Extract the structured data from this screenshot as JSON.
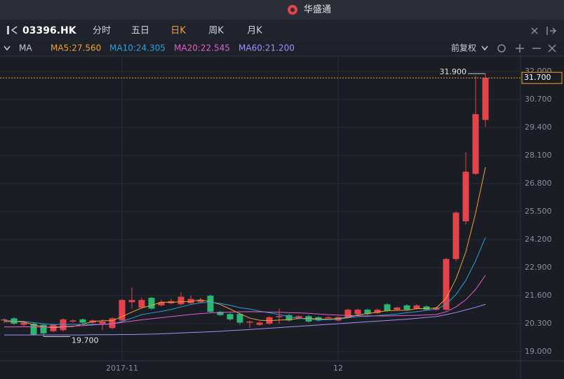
{
  "ui": {
    "app_title": "华盛通",
    "symbol": "03396.HK",
    "tabs": [
      "分时",
      "五日",
      "日K",
      "周K",
      "月K"
    ],
    "active_tab": 2,
    "indicator": "MA",
    "adjust": "前复权"
  },
  "chart_data": {
    "type": "candlestick",
    "categories": [
      null,
      null,
      null,
      null,
      null,
      null,
      null,
      null,
      null,
      null,
      null,
      null,
      "2017-11",
      null,
      null,
      null,
      null,
      null,
      null,
      null,
      null,
      null,
      null,
      null,
      null,
      null,
      null,
      null,
      null,
      null,
      null,
      null,
      null,
      null,
      "12",
      null,
      null,
      null,
      null,
      null,
      null,
      null,
      null,
      null,
      null,
      null,
      null,
      null,
      null,
      null
    ],
    "open": [
      20.45,
      20.55,
      20.25,
      20.3,
      20.25,
      19.95,
      20.0,
      20.4,
      20.5,
      20.35,
      20.3,
      20.1,
      20.45,
      21.3,
      21.05,
      21.5,
      21.15,
      21.25,
      21.2,
      21.25,
      21.3,
      21.6,
      20.85,
      20.75,
      20.75,
      20.35,
      20.25,
      20.3,
      20.6,
      20.7,
      20.55,
      20.65,
      20.6,
      20.55,
      20.45,
      20.6,
      20.75,
      20.95,
      20.8,
      21.2,
      20.95,
      21.15,
      21.0,
      21.1,
      20.95,
      20.95,
      23.3,
      25.05,
      27.25,
      29.75
    ],
    "high": [
      20.55,
      20.6,
      20.4,
      20.35,
      20.3,
      20.3,
      20.55,
      20.5,
      20.55,
      20.5,
      20.5,
      20.6,
      21.45,
      21.98,
      21.5,
      21.55,
      21.4,
      21.45,
      21.75,
      21.6,
      21.5,
      21.65,
      20.9,
      20.8,
      20.8,
      20.45,
      20.4,
      20.65,
      21.0,
      20.75,
      20.7,
      20.7,
      20.65,
      20.65,
      20.65,
      21.0,
      21.0,
      21.0,
      21.0,
      21.25,
      21.1,
      21.2,
      21.2,
      21.15,
      21.1,
      23.35,
      25.5,
      28.26,
      31.8,
      31.9
    ],
    "low": [
      20.35,
      20.25,
      20.2,
      19.75,
      19.7,
      19.9,
      19.95,
      20.35,
      20.3,
      20.3,
      20.0,
      20.05,
      20.4,
      21.0,
      21.0,
      20.95,
      21.1,
      21.2,
      21.15,
      21.2,
      21.25,
      20.8,
      20.65,
      20.45,
      20.25,
      20.1,
      20.2,
      20.25,
      20.3,
      20.4,
      20.5,
      20.35,
      20.4,
      20.5,
      20.4,
      20.55,
      20.7,
      20.7,
      20.75,
      20.85,
      20.9,
      20.9,
      20.95,
      20.9,
      20.9,
      20.9,
      23.2,
      24.9,
      27.2,
      29.43
    ],
    "close": [
      20.5,
      20.3,
      20.35,
      19.8,
      19.85,
      20.25,
      20.5,
      20.45,
      20.35,
      20.45,
      20.4,
      20.55,
      21.4,
      21.4,
      21.4,
      21.0,
      21.3,
      21.35,
      21.55,
      21.45,
      21.4,
      20.85,
      20.7,
      20.5,
      20.35,
      20.4,
      20.35,
      20.6,
      20.65,
      20.45,
      20.65,
      20.4,
      20.45,
      20.6,
      20.6,
      20.95,
      20.95,
      20.75,
      20.95,
      20.9,
      21.05,
      20.95,
      21.15,
      20.95,
      21.05,
      23.3,
      25.45,
      27.35,
      30.02,
      31.7
    ],
    "up_color": "#e5434b",
    "down_color": "#2bb673",
    "series": [
      {
        "name": "MA5:27.560",
        "color": "#f0a030",
        "values": [
          20.4,
          20.4,
          20.38,
          20.25,
          20.16,
          20.11,
          20.15,
          20.17,
          20.28,
          20.4,
          20.44,
          20.44,
          20.63,
          20.84,
          21.03,
          21.15,
          21.3,
          21.29,
          21.32,
          21.33,
          21.41,
          21.32,
          21.19,
          20.98,
          20.76,
          20.56,
          20.46,
          20.44,
          20.47,
          20.49,
          20.54,
          20.55,
          20.52,
          20.51,
          20.54,
          20.6,
          20.71,
          20.77,
          20.84,
          20.9,
          20.92,
          20.92,
          21.0,
          21.0,
          21.03,
          21.48,
          22.38,
          23.62,
          25.43,
          27.56
        ]
      },
      {
        "name": "MA10:24.305",
        "color": "#2a9fd8",
        "values": [
          20.45,
          20.43,
          20.41,
          20.35,
          20.3,
          20.26,
          20.27,
          20.27,
          20.26,
          20.27,
          20.26,
          20.29,
          20.4,
          20.56,
          20.72,
          20.8,
          20.87,
          20.96,
          21.08,
          21.19,
          21.27,
          21.3,
          21.24,
          21.15,
          21.04,
          20.98,
          20.88,
          20.81,
          20.72,
          20.63,
          20.55,
          20.51,
          20.48,
          20.49,
          20.51,
          20.57,
          20.63,
          20.64,
          20.67,
          20.71,
          20.75,
          20.81,
          20.86,
          20.92,
          20.97,
          21.2,
          21.65,
          22.31,
          23.22,
          24.305
        ]
      },
      {
        "name": "MA20:22.545",
        "color": "#e060c8",
        "values": [
          20.15,
          20.15,
          20.16,
          20.15,
          20.14,
          20.15,
          20.17,
          20.19,
          20.21,
          20.24,
          20.27,
          20.3,
          20.36,
          20.42,
          20.48,
          20.53,
          20.58,
          20.63,
          20.68,
          20.73,
          20.77,
          20.8,
          20.82,
          20.84,
          20.85,
          20.86,
          20.85,
          20.84,
          20.83,
          20.81,
          20.8,
          20.78,
          20.75,
          20.72,
          20.7,
          20.68,
          20.67,
          20.66,
          20.66,
          20.66,
          20.67,
          20.68,
          20.69,
          20.71,
          20.73,
          20.85,
          21.08,
          21.41,
          21.89,
          22.545
        ]
      },
      {
        "name": "MA60:21.200",
        "color": "#a78bfa",
        "values": [
          19.78,
          19.78,
          19.78,
          19.78,
          19.78,
          19.78,
          19.78,
          19.78,
          19.78,
          19.79,
          19.79,
          19.79,
          19.8,
          19.8,
          19.81,
          19.82,
          19.83,
          19.85,
          19.87,
          19.89,
          19.91,
          19.93,
          19.95,
          19.98,
          20.0,
          20.03,
          20.06,
          20.09,
          20.12,
          20.15,
          20.18,
          20.21,
          20.24,
          20.27,
          20.3,
          20.33,
          20.36,
          20.39,
          20.42,
          20.45,
          20.48,
          20.51,
          20.55,
          20.59,
          20.63,
          20.72,
          20.82,
          20.94,
          21.06,
          21.2
        ]
      }
    ],
    "ylim": [
      18.58,
      32.65
    ],
    "yticks": [
      {
        "value": 19.0,
        "label": "19.000"
      },
      {
        "value": 20.3,
        "label": "20.300"
      },
      {
        "value": 21.6,
        "label": "21.600"
      },
      {
        "value": 22.9,
        "label": "22.900"
      },
      {
        "value": 24.2,
        "label": "24.200"
      },
      {
        "value": 25.5,
        "label": "25.500"
      },
      {
        "value": 26.8,
        "label": "26.800"
      },
      {
        "value": 28.1,
        "label": "28.100"
      },
      {
        "value": 29.4,
        "label": "29.400"
      },
      {
        "value": 30.7,
        "label": "30.700"
      },
      {
        "value": 32.0,
        "label": "32.000"
      }
    ],
    "grid": true,
    "last_price": {
      "value": 31.7,
      "label": "31.700",
      "color": "#f0a030"
    },
    "high_marker": {
      "index": 49,
      "value": 31.9,
      "label": "31.900"
    },
    "low_marker": {
      "index": 4,
      "value": 19.7,
      "label": "19.700"
    }
  }
}
